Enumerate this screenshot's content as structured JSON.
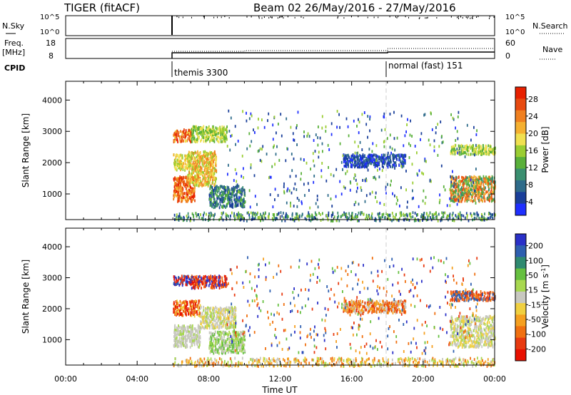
{
  "header": {
    "title": "TIGER (fitACF)",
    "beam_date": "Beam 02 26/May/2016 - 27/May/2016"
  },
  "top_panels": {
    "nsky_label": "N.Sky",
    "nsky_ticks": [
      "10^5",
      "10^0"
    ],
    "nsearch_label": "N.Search",
    "freq_label_1": "Freq.",
    "freq_label_2": "[MHz]",
    "freq_ticks": [
      "18",
      "8"
    ],
    "nave_label": "Nave",
    "nave_ticks": [
      "60",
      "0"
    ],
    "nsearch_ticks": [
      "10^5",
      "10^0"
    ],
    "cpid_label": "CPID",
    "cpid_modes": [
      {
        "label": "themis 3300",
        "start": 6.0,
        "end": 18.0
      },
      {
        "label": "normal (fast) 151",
        "start": 18.0,
        "end": 24.0
      }
    ]
  },
  "chart_data": [
    {
      "type": "heatmap",
      "panel": "power",
      "ylabel": "Slant Range [km]",
      "x_range": [
        0,
        24
      ],
      "ylim": [
        180,
        4600
      ],
      "y_ticks": [
        1000,
        2000,
        3000,
        4000
      ],
      "colorbar": {
        "label": "Power [dB]",
        "ticks": [
          "4",
          "8",
          "12",
          "16",
          "20",
          "24",
          "28"
        ],
        "colors": [
          "#1f2fff",
          "#1a3f9a",
          "#2e6b8a",
          "#3a8f70",
          "#59b03a",
          "#9acd32",
          "#f0e050",
          "#f5b030",
          "#f08020",
          "#e84a10",
          "#e82000"
        ]
      },
      "regions": [
        {
          "t": [
            6.0,
            7.2
          ],
          "r": [
            800,
            1600
          ],
          "c": [
            7,
            8,
            9,
            10
          ]
        },
        {
          "t": [
            6.8,
            8.4
          ],
          "r": [
            1300,
            2400
          ],
          "c": [
            5,
            6,
            7,
            8
          ]
        },
        {
          "t": [
            6.0,
            7.0
          ],
          "r": [
            1800,
            2300
          ],
          "c": [
            5,
            6,
            7
          ]
        },
        {
          "t": [
            6.0,
            7.0
          ],
          "r": [
            2700,
            3100
          ],
          "c": [
            6,
            8,
            9,
            10
          ]
        },
        {
          "t": [
            7.0,
            9.0
          ],
          "r": [
            2700,
            3200
          ],
          "c": [
            4,
            5,
            6
          ]
        },
        {
          "t": [
            8.0,
            10.0
          ],
          "r": [
            600,
            1300
          ],
          "c": [
            1,
            2,
            3,
            4
          ]
        },
        {
          "t": [
            15.5,
            19.0
          ],
          "r": [
            1900,
            2300
          ],
          "c": [
            0,
            1,
            2
          ]
        },
        {
          "t": [
            21.5,
            24.0
          ],
          "r": [
            800,
            1600
          ],
          "c": [
            3,
            4,
            7,
            8,
            9
          ]
        },
        {
          "t": [
            21.5,
            24.0
          ],
          "r": [
            2300,
            2600
          ],
          "c": [
            4,
            5,
            6
          ]
        },
        {
          "t": [
            6.0,
            24.0
          ],
          "r": [
            180,
            450
          ],
          "c": [
            1,
            2,
            3,
            4,
            5
          ]
        },
        {
          "t": [
            9.0,
            23.0
          ],
          "r": [
            600,
            3700
          ],
          "c": [
            0,
            1,
            2,
            4,
            5
          ]
        }
      ]
    },
    {
      "type": "heatmap",
      "panel": "velocity",
      "ylabel": "Slant Range [km]",
      "xlabel": "Time UT",
      "x_range": [
        0,
        24
      ],
      "x_ticks": [
        "00:00",
        "04:00",
        "08:00",
        "12:00",
        "16:00",
        "20:00",
        "00:00"
      ],
      "ylim": [
        180,
        4600
      ],
      "y_ticks": [
        1000,
        2000,
        3000,
        4000
      ],
      "colorbar": {
        "label": "Velocity [m s^-1]",
        "ticks": [
          "200",
          "100",
          "50",
          "15",
          "-15",
          "-50",
          "-100",
          "-200"
        ],
        "colors": [
          "#2a30c8",
          "#2e5fb0",
          "#2f8a70",
          "#66c040",
          "#a8d850",
          "#c8c8c0",
          "#f0d040",
          "#f5a020",
          "#f07010",
          "#e83a10",
          "#e81000"
        ]
      },
      "regions": [
        {
          "t": [
            6.0,
            7.5
          ],
          "r": [
            800,
            1500
          ],
          "c": [
            5,
            5,
            5,
            4
          ]
        },
        {
          "t": [
            7.5,
            9.5
          ],
          "r": [
            1400,
            2100
          ],
          "c": [
            5,
            5,
            4,
            6
          ]
        },
        {
          "t": [
            6.0,
            7.5
          ],
          "r": [
            1800,
            2300
          ],
          "c": [
            8,
            9,
            10,
            6
          ]
        },
        {
          "t": [
            6.0,
            7.0
          ],
          "r": [
            2800,
            3100
          ],
          "c": [
            0,
            1,
            9,
            10
          ]
        },
        {
          "t": [
            7.0,
            9.0
          ],
          "r": [
            2700,
            3100
          ],
          "c": [
            8,
            9,
            0,
            10
          ]
        },
        {
          "t": [
            8.0,
            10.0
          ],
          "r": [
            600,
            1300
          ],
          "c": [
            3,
            4,
            5
          ]
        },
        {
          "t": [
            15.5,
            19.0
          ],
          "r": [
            1900,
            2300
          ],
          "c": [
            7,
            8,
            9,
            5
          ]
        },
        {
          "t": [
            21.5,
            24.0
          ],
          "r": [
            800,
            1800
          ],
          "c": [
            5,
            5,
            4,
            6
          ]
        },
        {
          "t": [
            21.5,
            24.0
          ],
          "r": [
            2300,
            2600
          ],
          "c": [
            8,
            9,
            1
          ]
        },
        {
          "t": [
            6.0,
            24.0
          ],
          "r": [
            180,
            450
          ],
          "c": [
            6,
            7,
            8,
            4,
            5
          ]
        },
        {
          "t": [
            9.0,
            23.0
          ],
          "r": [
            600,
            3700
          ],
          "c": [
            0,
            1,
            7,
            8,
            9,
            3
          ]
        }
      ]
    }
  ]
}
